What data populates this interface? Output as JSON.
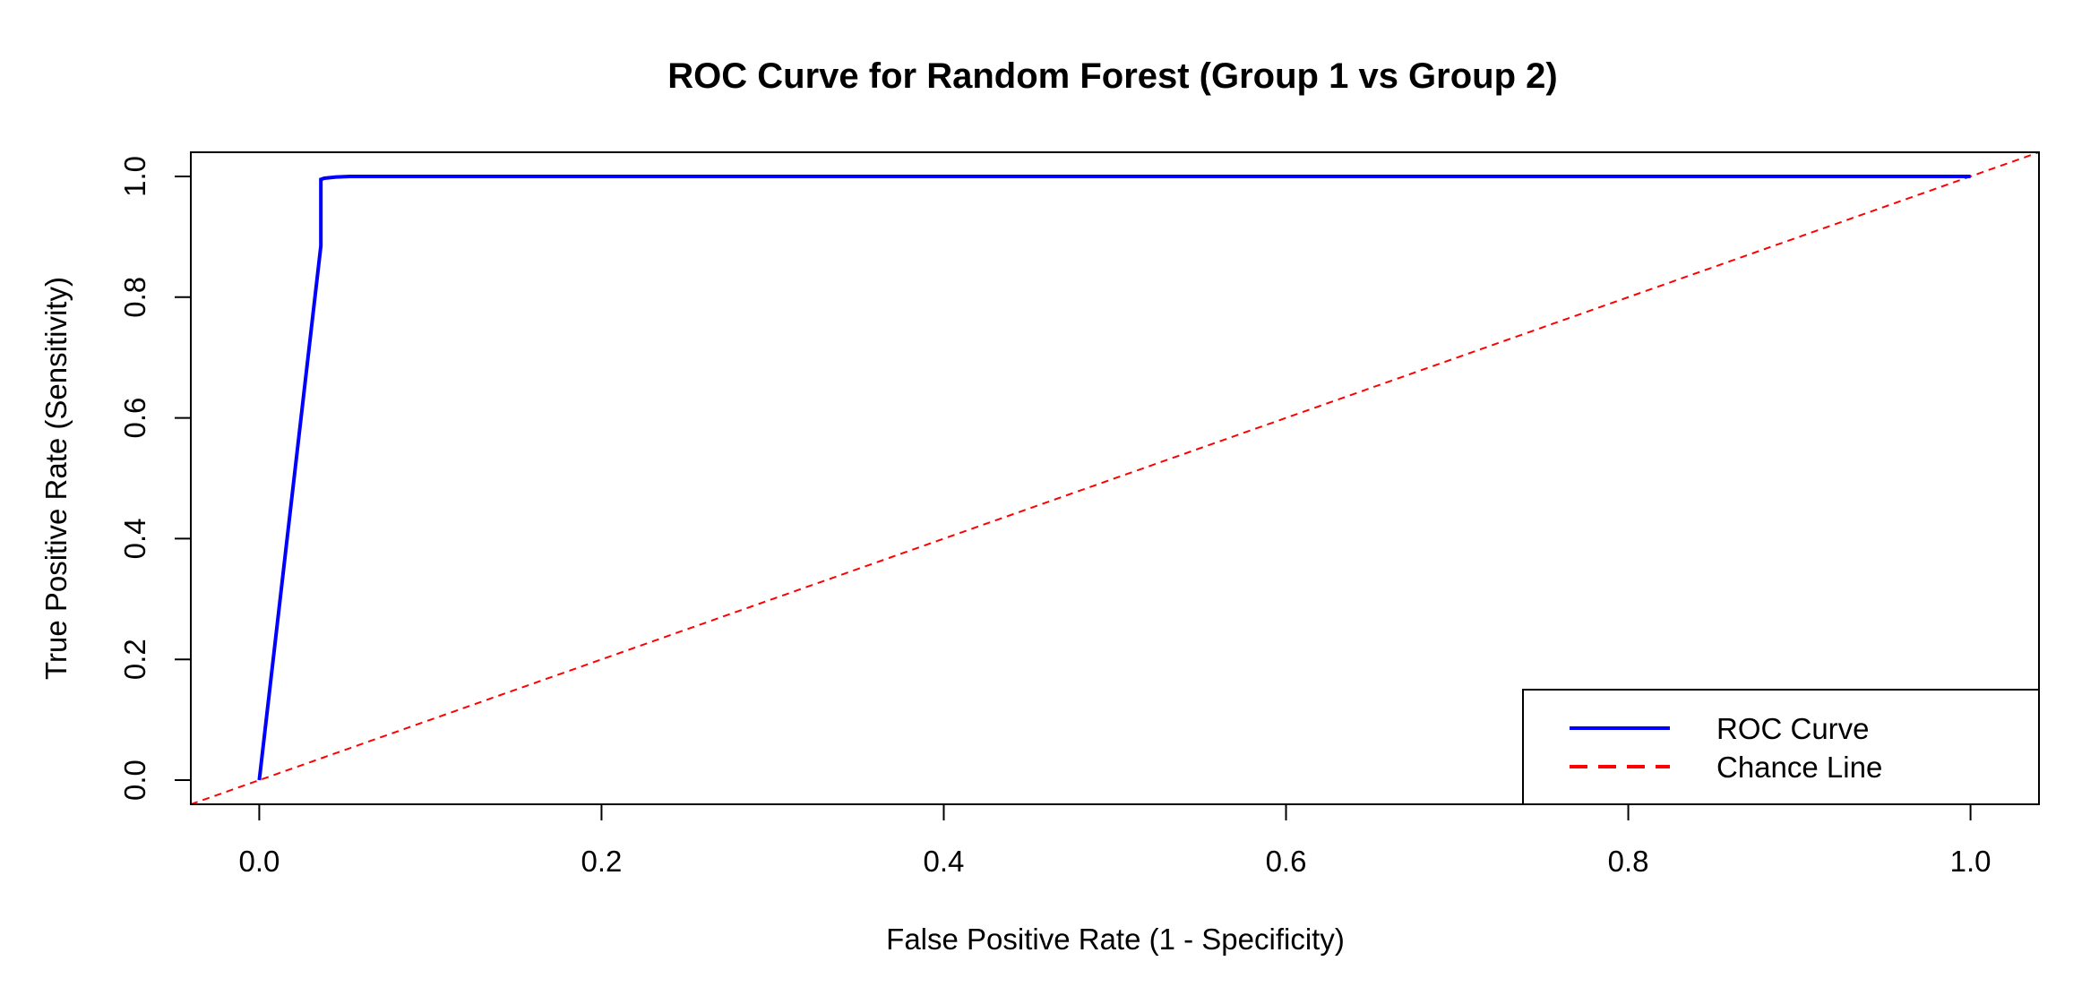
{
  "chart_data": {
    "type": "line",
    "title": "ROC Curve for Random Forest (Group 1 vs Group 2)",
    "xlabel": "False Positive Rate (1 - Specificity)",
    "ylabel": "True Positive Rate (Sensitivity)",
    "xlim": [
      -0.04,
      1.04
    ],
    "ylim": [
      -0.04,
      1.04
    ],
    "xticks": [
      0.0,
      0.2,
      0.4,
      0.6,
      0.8,
      1.0
    ],
    "xtick_labels": [
      "0.0",
      "0.2",
      "0.4",
      "0.6",
      "0.8",
      "1.0"
    ],
    "yticks": [
      0.0,
      0.2,
      0.4,
      0.6,
      0.8,
      1.0
    ],
    "ytick_labels": [
      "0.0",
      "0.2",
      "0.4",
      "0.6",
      "0.8",
      "1.0"
    ],
    "grid": false,
    "legend_position": "bottom-right",
    "series": [
      {
        "name": "ROC Curve",
        "color": "#0000FF",
        "line_style": "solid",
        "x": [
          0.0,
          0.036,
          0.036,
          0.036,
          0.038,
          0.045,
          0.053,
          1.0
        ],
        "y": [
          0.0,
          0.885,
          0.885,
          0.995,
          0.997,
          0.999,
          1.0,
          1.0
        ]
      },
      {
        "name": "Chance Line",
        "color": "#FF0000",
        "line_style": "dashed",
        "x": [
          -0.04,
          1.04
        ],
        "y": [
          -0.04,
          1.04
        ]
      }
    ]
  }
}
